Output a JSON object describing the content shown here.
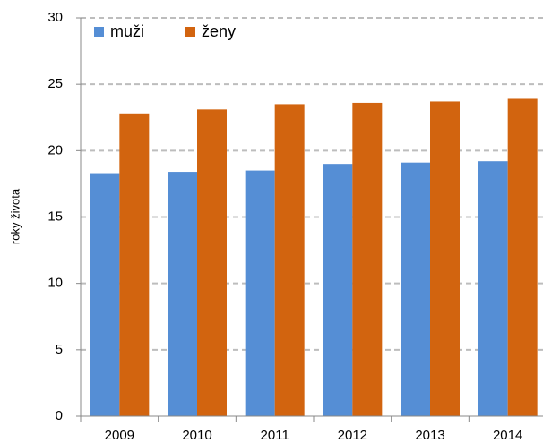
{
  "chart_data": {
    "type": "bar",
    "y_label": "roky života",
    "categories": [
      "2009",
      "2010",
      "2011",
      "2012",
      "2013",
      "2014"
    ],
    "series": [
      {
        "name": "muži",
        "color": "#558ed5",
        "values": [
          18.3,
          18.4,
          18.5,
          19.0,
          19.1,
          19.2
        ]
      },
      {
        "name": "ženy",
        "color": "#d2640f",
        "values": [
          22.8,
          23.1,
          23.5,
          23.6,
          23.7,
          23.9
        ]
      }
    ],
    "ylim": [
      0,
      30
    ],
    "yticks": [
      0,
      5,
      10,
      15,
      20,
      25,
      30
    ],
    "grid": true,
    "legend": "top-left"
  }
}
